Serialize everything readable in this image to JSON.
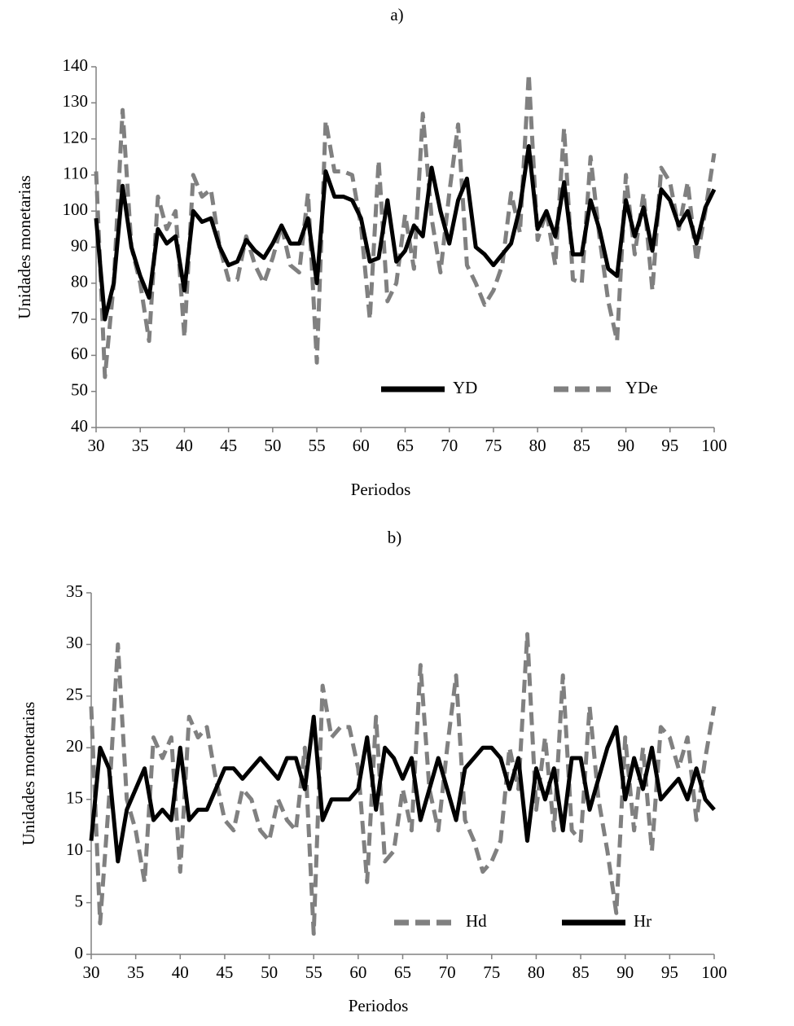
{
  "chart_data": [
    {
      "type": "line",
      "title": "a)",
      "xlabel": "Periodos",
      "ylabel": "Unidades monetarias",
      "x": [
        30,
        31,
        32,
        33,
        34,
        35,
        36,
        37,
        38,
        39,
        40,
        41,
        42,
        43,
        44,
        45,
        46,
        47,
        48,
        49,
        50,
        51,
        52,
        53,
        54,
        55,
        56,
        57,
        58,
        59,
        60,
        61,
        62,
        63,
        64,
        65,
        66,
        67,
        68,
        69,
        70,
        71,
        72,
        73,
        74,
        75,
        76,
        77,
        78,
        79,
        80,
        81,
        82,
        83,
        84,
        85,
        86,
        87,
        88,
        89,
        90,
        91,
        92,
        93,
        94,
        95,
        96,
        97,
        98,
        99,
        100
      ],
      "xlim": [
        30,
        100
      ],
      "xticks": [
        30,
        35,
        40,
        45,
        50,
        55,
        60,
        65,
        70,
        75,
        80,
        85,
        90,
        95,
        100
      ],
      "ylim": [
        40,
        140
      ],
      "yticks": [
        40,
        50,
        60,
        70,
        80,
        90,
        100,
        110,
        120,
        130,
        140
      ],
      "legend": "bottom-right",
      "series": [
        {
          "name": "YD",
          "color": "#000000",
          "dashed": false,
          "values": [
            98,
            70,
            80,
            107,
            90,
            82,
            76,
            95,
            91,
            93,
            78,
            100,
            97,
            98,
            90,
            85,
            86,
            92,
            89,
            87,
            91,
            96,
            91,
            91,
            98,
            80,
            111,
            104,
            104,
            103,
            98,
            86,
            87,
            103,
            86,
            89,
            96,
            93,
            112,
            100,
            91,
            103,
            109,
            90,
            88,
            85,
            88,
            91,
            101,
            118,
            95,
            100,
            93,
            108,
            88,
            88,
            103,
            95,
            84,
            82,
            103,
            93,
            101,
            89,
            106,
            103,
            96,
            100,
            91,
            101,
            106
          ]
        },
        {
          "name": "YDe",
          "color": "#808080",
          "dashed": true,
          "values": [
            111,
            54,
            80,
            128,
            90,
            80,
            64,
            104,
            95,
            100,
            65,
            110,
            104,
            106,
            90,
            81,
            81,
            93,
            85,
            80,
            87,
            96,
            85,
            83,
            105,
            58,
            125,
            111,
            111,
            110,
            96,
            70,
            114,
            75,
            80,
            99,
            84,
            127,
            98,
            83,
            105,
            124,
            85,
            80,
            74,
            78,
            85,
            105,
            94,
            138,
            92,
            100,
            85,
            123,
            81,
            80,
            115,
            93,
            75,
            64,
            110,
            88,
            105,
            78,
            112,
            108,
            95,
            108,
            86,
            100,
            116
          ]
        }
      ]
    },
    {
      "type": "line",
      "title": "b)",
      "xlabel": "Periodos",
      "ylabel": "Unidades monetarias",
      "x": [
        30,
        31,
        32,
        33,
        34,
        35,
        36,
        37,
        38,
        39,
        40,
        41,
        42,
        43,
        44,
        45,
        46,
        47,
        48,
        49,
        50,
        51,
        52,
        53,
        54,
        55,
        56,
        57,
        58,
        59,
        60,
        61,
        62,
        63,
        64,
        65,
        66,
        67,
        68,
        69,
        70,
        71,
        72,
        73,
        74,
        75,
        76,
        77,
        78,
        79,
        80,
        81,
        82,
        83,
        84,
        85,
        86,
        87,
        88,
        89,
        90,
        91,
        92,
        93,
        94,
        95,
        96,
        97,
        98,
        99,
        100
      ],
      "xlim": [
        30,
        100
      ],
      "xticks": [
        30,
        35,
        40,
        45,
        50,
        55,
        60,
        65,
        70,
        75,
        80,
        85,
        90,
        95,
        100
      ],
      "ylim": [
        0,
        35
      ],
      "yticks": [
        0,
        5,
        10,
        15,
        20,
        25,
        30,
        35
      ],
      "legend": "bottom-right",
      "series": [
        {
          "name": "Hd",
          "color": "#808080",
          "dashed": true,
          "values": [
            24,
            3,
            15,
            30,
            15,
            12,
            7,
            21,
            19,
            21,
            8,
            23,
            21,
            22,
            17,
            13,
            12,
            16,
            15,
            12,
            11,
            15,
            13,
            12,
            20,
            2,
            26,
            21,
            22,
            22,
            18,
            7,
            23,
            9,
            10,
            16,
            12,
            28,
            16,
            12,
            20,
            27,
            13,
            11,
            8,
            9,
            11,
            20,
            16,
            31,
            14,
            21,
            12,
            27,
            12,
            11,
            24,
            15,
            10,
            4,
            21,
            12,
            20,
            10,
            22,
            21,
            18,
            21,
            13,
            19,
            24
          ]
        },
        {
          "name": "Hr",
          "color": "#000000",
          "dashed": false,
          "values": [
            11,
            20,
            18,
            9,
            14,
            16,
            18,
            13,
            14,
            13,
            20,
            13,
            14,
            14,
            16,
            18,
            18,
            17,
            18,
            19,
            18,
            17,
            19,
            19,
            16,
            23,
            13,
            15,
            15,
            15,
            16,
            21,
            14,
            20,
            19,
            17,
            19,
            13,
            16,
            19,
            16,
            13,
            18,
            19,
            20,
            20,
            19,
            16,
            19,
            11,
            18,
            15,
            18,
            12,
            19,
            19,
            14,
            17,
            20,
            22,
            15,
            19,
            16,
            20,
            15,
            16,
            17,
            15,
            18,
            15,
            14
          ]
        }
      ]
    }
  ]
}
